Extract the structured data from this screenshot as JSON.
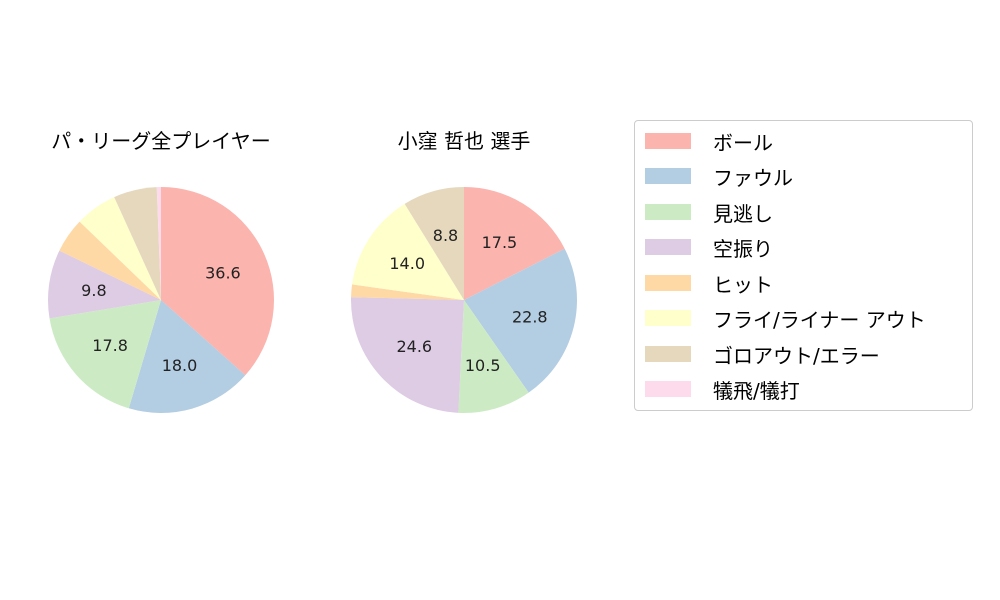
{
  "chart_data": [
    {
      "type": "pie",
      "title": "パ・リーグ全プレイヤー",
      "categories": [
        "ボール",
        "ファウル",
        "見逃し",
        "空振り",
        "ヒット",
        "フライ/ライナー アウト",
        "ゴロアウト/エラー",
        "犠飛/犠打"
      ],
      "values": [
        36.6,
        18.0,
        17.8,
        9.8,
        5.0,
        6.0,
        6.2,
        0.6
      ],
      "labels": [
        "36.6",
        "18.0",
        "17.8",
        "9.8",
        "",
        "",
        "",
        ""
      ]
    },
    {
      "type": "pie",
      "title": "小窪 哲也  選手",
      "categories": [
        "ボール",
        "ファウル",
        "見逃し",
        "空振り",
        "ヒット",
        "フライ/ライナー アウト",
        "ゴロアウト/エラー",
        "犠飛/犠打"
      ],
      "values": [
        17.5,
        22.8,
        10.5,
        24.6,
        1.8,
        14.0,
        8.8,
        0.0
      ],
      "labels": [
        "17.5",
        "22.8",
        "10.5",
        "24.6",
        "",
        "14.0",
        "8.8",
        ""
      ]
    }
  ],
  "colors": [
    "#fbb4ae",
    "#b3cde3",
    "#ccebc5",
    "#decbe4",
    "#fed9a6",
    "#ffffcc",
    "#e5d8bd",
    "#fddaec"
  ],
  "legend": {
    "placement": "right",
    "items": [
      "ボール",
      "ファウル",
      "見逃し",
      "空振り",
      "ヒット",
      "フライ/ライナー アウト",
      "ゴロアウト/エラー",
      "犠飛/犠打"
    ]
  }
}
